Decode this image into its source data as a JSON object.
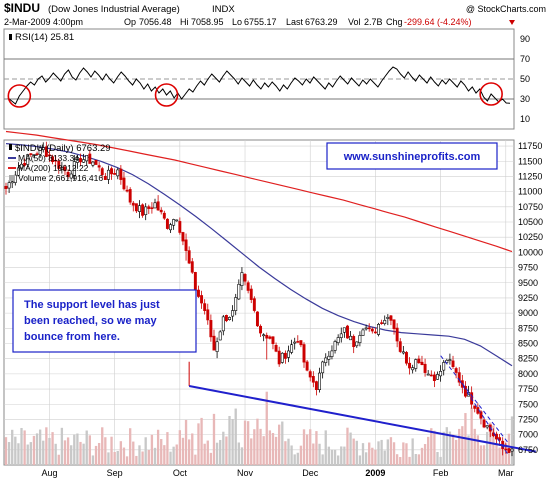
{
  "header": {
    "ticker": "$INDU",
    "name": "(Dow Jones Industrial Average)",
    "exchange": "INDX",
    "copyright": "@ StockCharts.com",
    "date": "2-Mar-2009 4:00pm",
    "op_label": "Op",
    "op": "7056.48",
    "hi_label": "Hi",
    "hi": "7058.95",
    "lo_label": "Lo",
    "lo": "6755.17",
    "last_label": "Last",
    "last": "6763.29",
    "vol_label": "Vol",
    "vol": "2.7B",
    "chg_label": "Chg",
    "chg": "-299.64 (-4.24%)"
  },
  "chart_data": [
    {
      "type": "line",
      "legend": "RSI(14) 25.81",
      "ylim": [
        0,
        100
      ],
      "yticks": [
        10,
        30,
        50,
        70,
        90
      ],
      "reference_lines": [
        30,
        50,
        70
      ],
      "values": [
        31,
        28,
        25,
        33,
        38,
        43,
        47,
        44,
        50,
        53,
        47,
        51,
        56,
        52,
        48,
        55,
        59,
        52,
        49,
        56,
        61,
        57,
        52,
        58,
        54,
        49,
        55,
        50,
        46,
        52,
        57,
        53,
        48,
        44,
        50,
        46,
        40,
        45,
        38,
        42,
        36,
        40,
        34,
        38,
        31,
        36,
        30,
        35,
        40,
        37,
        43,
        48,
        44,
        50,
        55,
        51,
        47,
        53,
        58,
        54,
        50,
        45,
        51,
        47,
        43,
        49,
        44,
        40,
        46,
        42,
        47,
        43,
        38,
        44,
        40,
        46,
        51,
        48,
        44,
        50,
        46,
        52,
        48,
        44,
        40,
        46,
        42,
        48,
        53,
        49,
        45,
        51,
        47,
        43,
        49,
        45,
        50,
        46,
        42,
        48,
        53,
        58,
        62,
        60,
        55,
        51,
        57,
        52,
        48,
        54,
        50,
        46,
        52,
        47,
        43,
        49,
        45,
        50,
        46,
        42,
        48,
        44,
        38,
        42,
        36,
        40,
        32,
        28,
        35,
        31,
        27,
        30,
        26,
        25.81
      ],
      "highlight_circles_at_index": [
        3,
        42,
        128
      ]
    },
    {
      "type": "candlestick",
      "legend": "$INDU (Daily) 6763.29",
      "ylim": [
        6500,
        11850
      ],
      "yticks": [
        6750,
        7000,
        7250,
        7500,
        7750,
        8000,
        8250,
        8500,
        8750,
        9000,
        9250,
        9500,
        9750,
        10000,
        10250,
        10500,
        10750,
        11000,
        11250,
        11500,
        11750
      ],
      "xticks": [
        "Aug",
        "Sep",
        "Oct",
        "Nov",
        "Dec",
        "2009",
        "Feb",
        "Mar"
      ],
      "xtick_index": [
        14,
        35,
        56,
        77,
        98,
        119,
        140,
        161
      ],
      "series": [
        {
          "name": "MA(50) 8133.34",
          "color": "#3a3a9a",
          "values": [
            11790,
            11770,
            11740,
            11700,
            11650,
            11580,
            11500,
            11400,
            11280,
            11130,
            10960,
            10780,
            10590,
            10390,
            10180,
            9970,
            9760,
            9570,
            9390,
            9230,
            9080,
            8960,
            8860,
            8780,
            8720,
            8680,
            8660,
            8640,
            8620,
            8570,
            8460,
            8300,
            8133.34
          ]
        },
        {
          "name": "MA(200) 10012.22",
          "color": "#e02020",
          "values": [
            11990,
            11960,
            11930,
            11890,
            11850,
            11810,
            11770,
            11720,
            11670,
            11620,
            11570,
            11520,
            11460,
            11400,
            11340,
            11280,
            11220,
            11160,
            11100,
            11040,
            10980,
            10920,
            10860,
            10790,
            10720,
            10650,
            10580,
            10500,
            10420,
            10340,
            10260,
            10180,
            10100,
            10012.22
          ]
        },
        {
          "name": "Volume 2,661,916,416",
          "color": "#888888"
        }
      ],
      "close_anchors": [
        [
          0,
          11050
        ],
        [
          4,
          11400
        ],
        [
          8,
          11600
        ],
        [
          12,
          11700
        ],
        [
          16,
          11480
        ],
        [
          20,
          11300
        ],
        [
          24,
          11550
        ],
        [
          28,
          11500
        ],
        [
          32,
          11250
        ],
        [
          36,
          11350
        ],
        [
          40,
          10850
        ],
        [
          44,
          10650
        ],
        [
          48,
          10800
        ],
        [
          52,
          10450
        ],
        [
          55,
          10600
        ],
        [
          58,
          10000
        ],
        [
          61,
          9400
        ],
        [
          64,
          9050
        ],
        [
          67,
          8400
        ],
        [
          70,
          8900
        ],
        [
          73,
          9000
        ],
        [
          76,
          9600
        ],
        [
          79,
          9200
        ],
        [
          82,
          8700
        ],
        [
          85,
          8600
        ],
        [
          88,
          8200
        ],
        [
          91,
          8400
        ],
        [
          94,
          8600
        ],
        [
          97,
          8000
        ],
        [
          100,
          7800
        ],
        [
          103,
          8300
        ],
        [
          106,
          8500
        ],
        [
          109,
          8700
        ],
        [
          112,
          8500
        ],
        [
          115,
          8800
        ],
        [
          118,
          8650
        ],
        [
          121,
          8900
        ],
        [
          124,
          8950
        ],
        [
          127,
          8400
        ],
        [
          130,
          8150
        ],
        [
          133,
          8250
        ],
        [
          136,
          8000
        ],
        [
          139,
          7950
        ],
        [
          142,
          8250
        ],
        [
          145,
          8000
        ],
        [
          148,
          7700
        ],
        [
          151,
          7500
        ],
        [
          154,
          7200
        ],
        [
          157,
          7000
        ],
        [
          160,
          6763.29
        ]
      ],
      "volume_note": "volume bars along bottom of price panel"
    }
  ],
  "annotations": {
    "website": "www.sunshineprofits.com",
    "support_text_line1": "The support level has just",
    "support_text_line2": "been reached, so we may",
    "support_text_line3": "bounce from here.",
    "support_line": {
      "from_index": 59,
      "from_value": 7800,
      "to_index": 161,
      "to_value": 6720
    },
    "dashed_channel_upper": {
      "from_index": 140,
      "from_value": 8300,
      "to_index": 162,
      "to_value": 6850
    },
    "dashed_channel_lower": {
      "from_index": 146,
      "from_value": 7900,
      "to_index": 162,
      "to_value": 6650
    }
  },
  "colors": {
    "up_candle": "#000000",
    "down_candle": "#cc0000",
    "rsi_line": "#000000",
    "support_line": "#2020cc",
    "label_blue": "#1a22c8",
    "grid": "#d0d0d0"
  }
}
